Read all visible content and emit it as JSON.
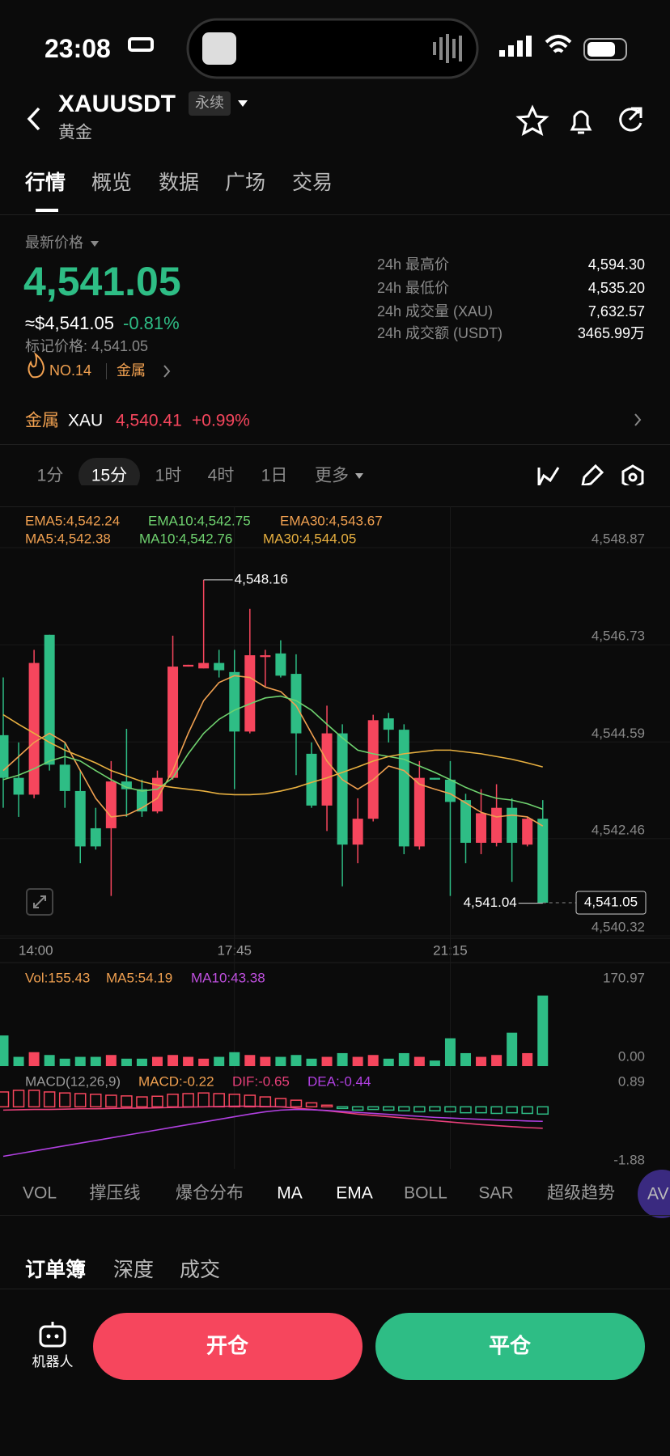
{
  "status_bar": {
    "time": "23:08"
  },
  "header": {
    "symbol": "XAUUSDT",
    "badge": "永续",
    "name": "黄金"
  },
  "tabs": [
    "行情",
    "概览",
    "数据",
    "广场",
    "交易"
  ],
  "price": {
    "label": "最新价格",
    "last": "4,541.05",
    "approx": "≈$4,541.05",
    "change": "-0.81%",
    "mark": "标记价格: 4,541.05",
    "rank": "NO.14",
    "sector": "金属"
  },
  "stats": [
    {
      "label": "24h 最高价",
      "value": "4,594.30"
    },
    {
      "label": "24h 最低价",
      "value": "4,535.20"
    },
    {
      "label": "24h 成交量 (XAU)",
      "value": "7,632.57"
    },
    {
      "label": "24h 成交额 (USDT)",
      "value": "3465.99万"
    }
  ],
  "sector_bar": {
    "sector": "金属",
    "symbol": "XAU",
    "price": "4,540.41",
    "change": "+0.99%"
  },
  "timeframes": [
    "1分",
    "15分",
    "1时",
    "4时",
    "1日",
    "更多"
  ],
  "chart_data": {
    "type": "candlestick",
    "up_color": "#f6465d",
    "down_color": "#2ebd85",
    "ema_legend": [
      {
        "text": "EMA5:4,542.24",
        "color": "#f0a050"
      },
      {
        "text": "EMA10:4,542.75",
        "color": "#6fd26f"
      },
      {
        "text": "EMA30:4,543.67",
        "color": "#f0a050"
      }
    ],
    "ma_legend": [
      {
        "text": "MA5:4,542.38",
        "color": "#f0a050"
      },
      {
        "text": "MA10:4,542.76",
        "color": "#6fd26f"
      },
      {
        "text": "MA30:4,544.05",
        "color": "#e8b040"
      }
    ],
    "categories": [
      null,
      "14:00",
      null,
      null,
      null,
      null,
      null,
      null,
      null,
      null,
      null,
      null,
      null,
      null,
      null,
      "17:45",
      null,
      null,
      null,
      null,
      null,
      null,
      null,
      null,
      null,
      null,
      null,
      null,
      null,
      "21:15",
      null,
      null,
      null,
      null,
      null,
      null
    ],
    "open": [
      4544.74,
      4543.8,
      4543.43,
      4546.95,
      4544.09,
      4543.51,
      4542.69,
      4542.69,
      4543.72,
      4543.55,
      4543.06,
      4543.8,
      4546.25,
      4546.21,
      4546.33,
      4546.13,
      4544.82,
      4546.46,
      4546.54,
      4546.09,
      4544.33,
      4543.19,
      4544.78,
      4542.33,
      4542.9,
      4545.11,
      4544.86,
      4542.29,
      4543.8,
      4543.76,
      4543.31,
      4542.37,
      4542.37,
      4543.14,
      4542.33,
      4542.9
    ],
    "high": [
      4546.01,
      4544.58,
      4546.62,
      4546.95,
      4544.58,
      4543.96,
      4543.14,
      4544.17,
      4544.88,
      4543.76,
      4543.96,
      4546.93,
      4546.29,
      4548.16,
      4546.62,
      4546.62,
      4547.52,
      4546.62,
      4546.83,
      4546.52,
      4544.58,
      4545.39,
      4544.98,
      4543.35,
      4545.19,
      4545.23,
      4544.98,
      4544.17,
      4543.8,
      4544.17,
      4543.45,
      4543.55,
      4543.66,
      4543.35,
      4542.94,
      4543.31
    ],
    "low": [
      4543.14,
      4542.94,
      4543.35,
      4543.96,
      4543.14,
      4541.92,
      4542.22,
      4541.2,
      4542.94,
      4542.94,
      4543.02,
      4543.76,
      4546.25,
      4546.21,
      4546.01,
      4543.55,
      4544.78,
      4545.8,
      4546.01,
      4543.86,
      4543.14,
      4542.63,
      4541.41,
      4541.92,
      4542.84,
      4544.58,
      4542.12,
      4542.22,
      4543.76,
      4541.2,
      4541.92,
      4542.12,
      4542.29,
      4541.51,
      4542.29,
      4541.04
    ],
    "close": [
      4543.8,
      4543.43,
      4546.33,
      4544.09,
      4543.51,
      4542.29,
      4542.29,
      4543.72,
      4543.55,
      4543.06,
      4543.8,
      4546.25,
      4546.29,
      4546.33,
      4546.17,
      4544.82,
      4546.5,
      4546.5,
      4546.05,
      4544.78,
      4543.19,
      4544.78,
      4542.33,
      4542.9,
      4545.07,
      4544.86,
      4542.29,
      4543.8,
      4543.76,
      4543.27,
      4542.37,
      4543.02,
      4543.14,
      4542.37,
      4542.9,
      4541.05
    ],
    "lines": [
      {
        "color": "#f0a050",
        "values": [
          4543.96,
          4544.27,
          4544.58,
          4544.78,
          4544.58,
          4543.96,
          4543.35,
          4542.94,
          4542.98,
          4543.14,
          4543.35,
          4543.96,
          4544.78,
          4545.5,
          4545.9,
          4546.05,
          4546.01,
          4545.8,
          4545.7,
          4545.39,
          4544.78,
          4544.17,
          4543.76,
          4543.55,
          4543.76,
          4544.06,
          4543.96,
          4543.66,
          4543.55,
          4543.45,
          4543.25,
          4543.04,
          4542.94,
          4542.98,
          4542.94,
          4542.74
        ]
      },
      {
        "color": "#6fd26f",
        "values": [
          4543.76,
          4543.86,
          4544.0,
          4544.17,
          4544.27,
          4544.17,
          4543.96,
          4543.76,
          4543.59,
          4543.51,
          4543.55,
          4543.8,
          4544.33,
          4544.78,
          4545.09,
          4545.29,
          4545.43,
          4545.56,
          4545.6,
          4545.5,
          4545.29,
          4544.98,
          4544.68,
          4544.41,
          4544.33,
          4544.27,
          4544.21,
          4544.06,
          4543.92,
          4543.76,
          4543.59,
          4543.45,
          4543.35,
          4543.31,
          4543.23,
          4543.11
        ]
      },
      {
        "color": "#e8b040",
        "values": [
          4545.19,
          4544.98,
          4544.78,
          4544.58,
          4544.41,
          4544.27,
          4544.13,
          4543.96,
          4543.84,
          4543.72,
          4543.64,
          4543.59,
          4543.55,
          4543.51,
          4543.45,
          4543.43,
          4543.43,
          4543.45,
          4543.51,
          4543.59,
          4543.7,
          4543.8,
          4543.92,
          4544.04,
          4544.17,
          4544.27,
          4544.33,
          4544.37,
          4544.41,
          4544.41,
          4544.37,
          4544.33,
          4544.27,
          4544.21,
          4544.13,
          4544.04
        ]
      }
    ],
    "max_label": "4,548.16",
    "min_label": "4,541.04",
    "last_label": "4,541.05",
    "ylim": [
      4540.32,
      4548.87
    ],
    "yticks": [
      {
        "value": 4548.87,
        "label": "4,548.87"
      },
      {
        "value": 4546.73,
        "label": "4,546.73"
      },
      {
        "value": 4544.59,
        "label": "4,544.59"
      },
      {
        "value": 4542.46,
        "label": "4,542.46"
      },
      {
        "value": 4540.32,
        "label": "4,540.32"
      }
    ],
    "grid": true,
    "volume": {
      "legend": [
        {
          "text": "Vol:155.43",
          "color": "#f0a050"
        },
        {
          "text": "MA5:54.19",
          "color": "#f0a050"
        },
        {
          "text": "MA10:43.38",
          "color": "#c050e0"
        }
      ],
      "values": [
        67.5,
        20.4,
        30.7,
        24.5,
        16.4,
        20.4,
        20.4,
        24.5,
        16.4,
        16.4,
        20.4,
        24.5,
        20.4,
        16.4,
        20.4,
        30.7,
        24.5,
        20.4,
        20.4,
        24.5,
        16.4,
        20.4,
        28.6,
        20.4,
        24.5,
        16.4,
        28.6,
        20.4,
        12.3,
        61.3,
        28.6,
        20.4,
        24.5,
        73.6,
        28.6,
        155.43
      ],
      "ylim": [
        0,
        170.97
      ],
      "yticks": [
        {
          "value": 0,
          "label": "0.00"
        },
        170.97
      ]
    },
    "macd": {
      "legend": [
        {
          "text": "MACD(12,26,9)",
          "color": "#999999"
        },
        {
          "text": "MACD:-0.22",
          "color": "#f0a050"
        },
        {
          "text": "DIF:-0.65",
          "color": "#e8407a"
        },
        {
          "text": "DEA:-0.44",
          "color": "#b040e0"
        }
      ],
      "hist": [
        0.45,
        0.5,
        0.5,
        0.45,
        0.42,
        0.4,
        0.38,
        0.35,
        0.33,
        0.3,
        0.32,
        0.38,
        0.4,
        0.42,
        0.4,
        0.38,
        0.35,
        0.3,
        0.25,
        0.2,
        0.12,
        0.05,
        -0.05,
        -0.1,
        -0.08,
        -0.1,
        -0.12,
        -0.15,
        -0.12,
        -0.15,
        -0.18,
        -0.18,
        -0.2,
        -0.18,
        -0.2,
        -0.22
      ],
      "dif": [
        -0.1,
        -0.09,
        -0.08,
        -0.08,
        -0.07,
        -0.06,
        -0.06,
        -0.05,
        -0.04,
        -0.04,
        -0.03,
        -0.02,
        -0.01,
        0,
        0.01,
        0.02,
        0.02,
        0.01,
        0,
        -0.04,
        -0.08,
        -0.12,
        -0.17,
        -0.22,
        -0.26,
        -0.3,
        -0.34,
        -0.38,
        -0.42,
        -0.46,
        -0.5,
        -0.54,
        -0.57,
        -0.6,
        -0.63,
        -0.65
      ],
      "dea": [
        -1.5,
        -1.42,
        -1.34,
        -1.26,
        -1.18,
        -1.1,
        -1.02,
        -0.94,
        -0.86,
        -0.78,
        -0.7,
        -0.62,
        -0.54,
        -0.46,
        -0.38,
        -0.3,
        -0.22,
        -0.15,
        -0.1,
        -0.08,
        -0.09,
        -0.11,
        -0.14,
        -0.17,
        -0.2,
        -0.23,
        -0.26,
        -0.29,
        -0.32,
        -0.34,
        -0.36,
        -0.38,
        -0.4,
        -0.41,
        -0.43,
        -0.44
      ],
      "dif_color": "#e8407a",
      "dea_color": "#b040e0",
      "ylim": [
        -1.88,
        0.89
      ],
      "yticks": [
        0.89,
        -1.88
      ]
    }
  },
  "indicators": [
    "VOL",
    "撑压线",
    "爆仓分布",
    "MA",
    "EMA",
    "BOLL",
    "SAR",
    "超级趋势",
    "AV"
  ],
  "orderbook_tabs": [
    "订单簿",
    "深度",
    "成交"
  ],
  "bottom": {
    "robot": "机器人",
    "open": "开仓",
    "close": "平仓"
  }
}
